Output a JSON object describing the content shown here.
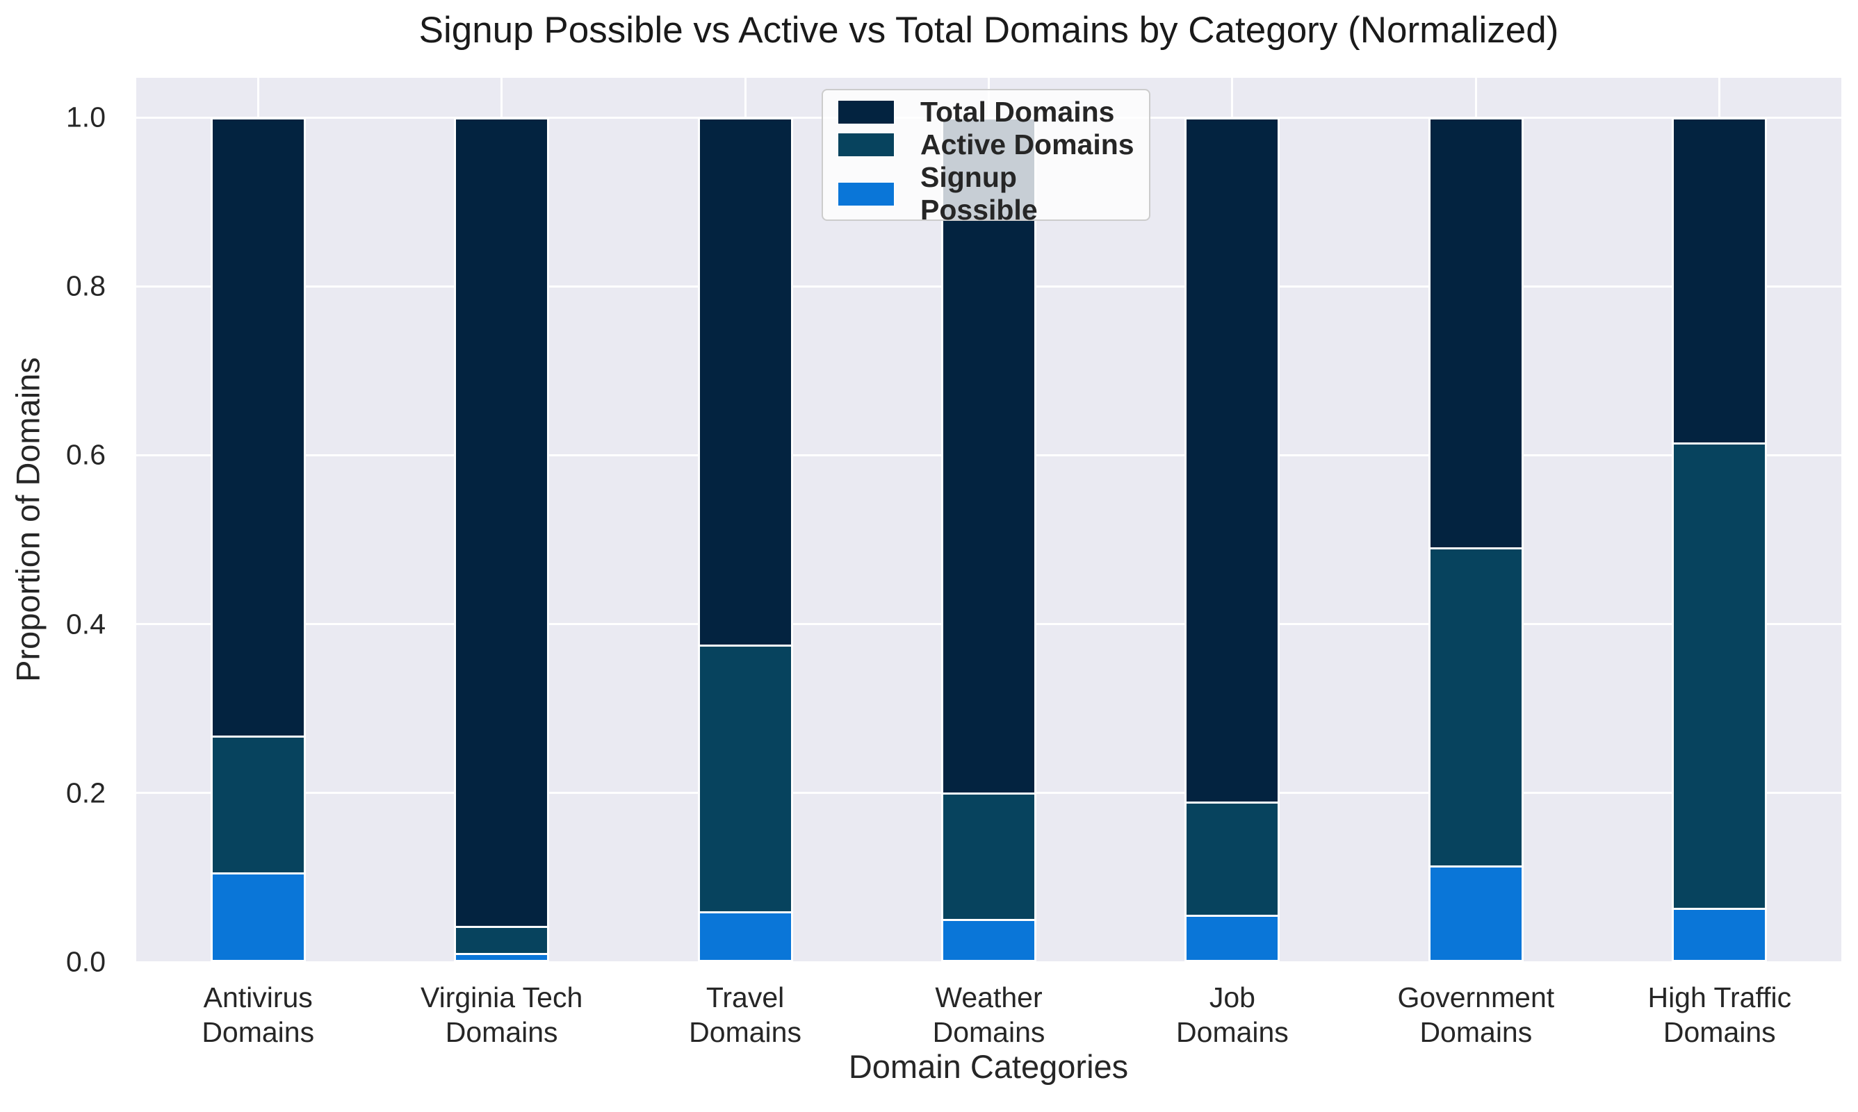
{
  "chart_data": {
    "type": "bar",
    "variant": "overlaid-stacked-normalized",
    "title": "Signup Possible vs Active vs Total Domains by Category (Normalized)",
    "xlabel": "Domain Categories",
    "ylabel": "Proportion of Domains",
    "categories": [
      "Antivirus Domains",
      "Virginia Tech Domains",
      "Travel Domains",
      "Weather Domains",
      "Job Domains",
      "Government Domains",
      "High Traffic Domains"
    ],
    "category_tick_lines": [
      [
        "Antivirus",
        "Domains"
      ],
      [
        "Virginia Tech",
        "Domains"
      ],
      [
        "Travel",
        "Domains"
      ],
      [
        "Weather",
        "Domains"
      ],
      [
        "Job",
        "Domains"
      ],
      [
        "Government",
        "Domains"
      ],
      [
        "High Traffic",
        "Domains"
      ]
    ],
    "series": [
      {
        "name": "Total Domains",
        "color": "#032340",
        "cumulative_proportions": [
          1.0,
          1.0,
          1.0,
          1.0,
          1.0,
          1.0,
          1.0
        ]
      },
      {
        "name": "Active Domains",
        "color": "#07435e",
        "cumulative_proportions": [
          0.268,
          0.043,
          0.376,
          0.201,
          0.19,
          0.491,
          0.615
        ]
      },
      {
        "name": "Signup Possible",
        "color": "#0a76d8",
        "cumulative_proportions": [
          0.106,
          0.011,
          0.06,
          0.051,
          0.056,
          0.114,
          0.064
        ]
      }
    ],
    "ylim": [
      0,
      1.047
    ],
    "yticks": [
      "0.0",
      "0.2",
      "0.4",
      "0.6",
      "0.8",
      "1.0"
    ],
    "grid": true,
    "legend_position": "upper center",
    "colors": {
      "plot_background": "#eaeaf2",
      "grid": "#ffffff",
      "bar_edge": "#ffffff",
      "text": "#262626",
      "legend_border": "#cccccc"
    }
  }
}
